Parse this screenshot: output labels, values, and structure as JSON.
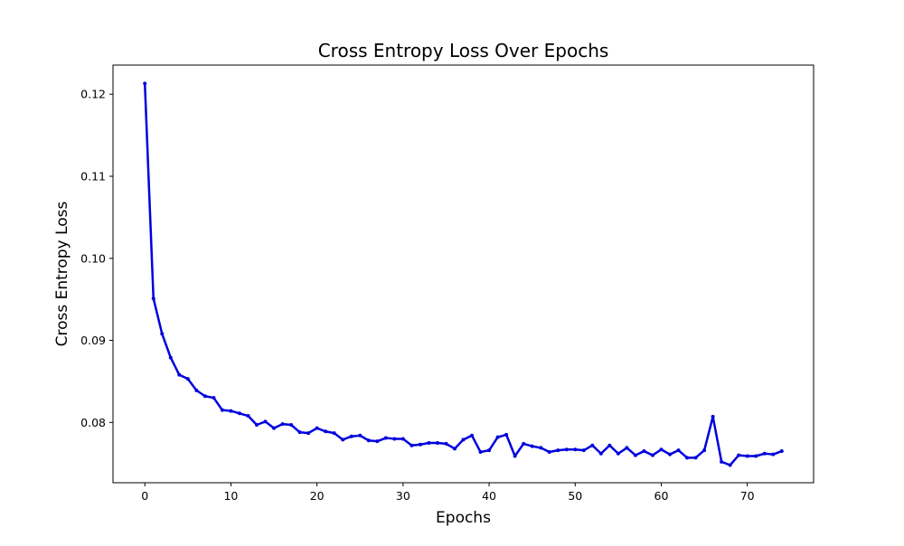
{
  "chart_data": {
    "type": "line",
    "title": "Cross Entropy Loss Over Epochs",
    "xlabel": "Epochs",
    "ylabel": "Cross Entropy Loss",
    "xlim": [
      -3.7,
      77.7
    ],
    "ylim": [
      0.07265,
      0.12355
    ],
    "xticks": [
      0,
      10,
      20,
      30,
      40,
      50,
      60,
      70
    ],
    "yticks": [
      0.08,
      0.09,
      0.1,
      0.11,
      0.12
    ],
    "ytick_labels": [
      "0.08",
      "0.09",
      "0.10",
      "0.11",
      "0.12"
    ],
    "grid": false,
    "legend": "none",
    "series": [
      {
        "color": "#0000dd",
        "marker": "dot",
        "x": [
          0,
          1,
          2,
          3,
          4,
          5,
          6,
          7,
          8,
          9,
          10,
          11,
          12,
          13,
          14,
          15,
          16,
          17,
          18,
          19,
          20,
          21,
          22,
          23,
          24,
          25,
          26,
          27,
          28,
          29,
          30,
          31,
          32,
          33,
          34,
          35,
          36,
          37,
          38,
          39,
          40,
          41,
          42,
          43,
          44,
          45,
          46,
          47,
          48,
          49,
          50,
          51,
          52,
          53,
          54,
          55,
          56,
          57,
          58,
          59,
          60,
          61,
          62,
          63,
          64,
          65,
          66,
          67,
          68,
          69,
          70,
          71,
          72,
          73,
          74
        ],
        "values": [
          0.1213,
          0.0951,
          0.0908,
          0.0879,
          0.0858,
          0.0853,
          0.0839,
          0.0832,
          0.083,
          0.0815,
          0.0814,
          0.0811,
          0.0808,
          0.0797,
          0.0801,
          0.0793,
          0.0798,
          0.0797,
          0.0788,
          0.0787,
          0.0793,
          0.0789,
          0.0787,
          0.0779,
          0.0783,
          0.0784,
          0.0778,
          0.0777,
          0.0781,
          0.078,
          0.078,
          0.0772,
          0.0773,
          0.0775,
          0.0775,
          0.0774,
          0.0768,
          0.0779,
          0.0784,
          0.0764,
          0.0766,
          0.0782,
          0.0785,
          0.0759,
          0.0774,
          0.0771,
          0.0769,
          0.0764,
          0.0766,
          0.0767,
          0.0767,
          0.0766,
          0.0772,
          0.0762,
          0.0772,
          0.0762,
          0.0769,
          0.076,
          0.0765,
          0.076,
          0.0767,
          0.0761,
          0.0766,
          0.0757,
          0.0757,
          0.0766,
          0.0807,
          0.0752,
          0.0748,
          0.076,
          0.0759,
          0.0759,
          0.0762,
          0.0761,
          0.0765
        ]
      }
    ]
  }
}
